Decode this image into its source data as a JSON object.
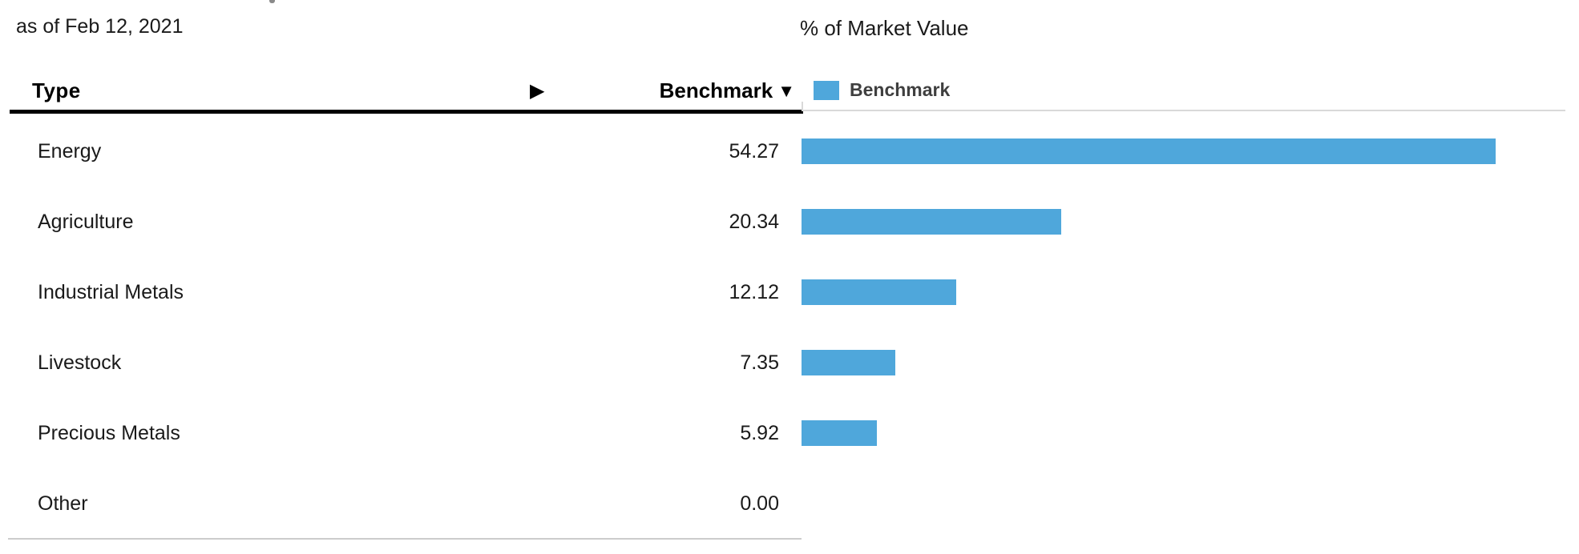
{
  "meta": {
    "as_of_label": "as of Feb 12, 2021"
  },
  "table": {
    "header": {
      "type_label": "Type",
      "benchmark_label": "Benchmark"
    },
    "icons": {
      "expand_icon": "▶",
      "sort_desc_icon": "▼"
    },
    "rows": [
      {
        "label": "Energy",
        "value": "54.27"
      },
      {
        "label": "Agriculture",
        "value": "20.34"
      },
      {
        "label": "Industrial Metals",
        "value": "12.12"
      },
      {
        "label": "Livestock",
        "value": "7.35"
      },
      {
        "label": "Precious Metals",
        "value": "5.92"
      },
      {
        "label": "Other",
        "value": "0.00"
      }
    ]
  },
  "chart": {
    "title": "% of Market Value",
    "legend": [
      {
        "label": "Benchmark",
        "color": "#4FA7DB"
      }
    ]
  },
  "chart_data": {
    "type": "bar",
    "orientation": "horizontal",
    "title": "% of Market Value",
    "categories": [
      "Energy",
      "Agriculture",
      "Industrial Metals",
      "Livestock",
      "Precious Metals",
      "Other"
    ],
    "series": [
      {
        "name": "Benchmark",
        "values": [
          54.27,
          20.34,
          12.12,
          7.35,
          5.92,
          0.0
        ]
      }
    ],
    "series_color": "#4FA7DB",
    "xlim": [
      0,
      60
    ],
    "grid": false,
    "legend_position": "top-left",
    "value_labels_shown_in_table": true
  }
}
